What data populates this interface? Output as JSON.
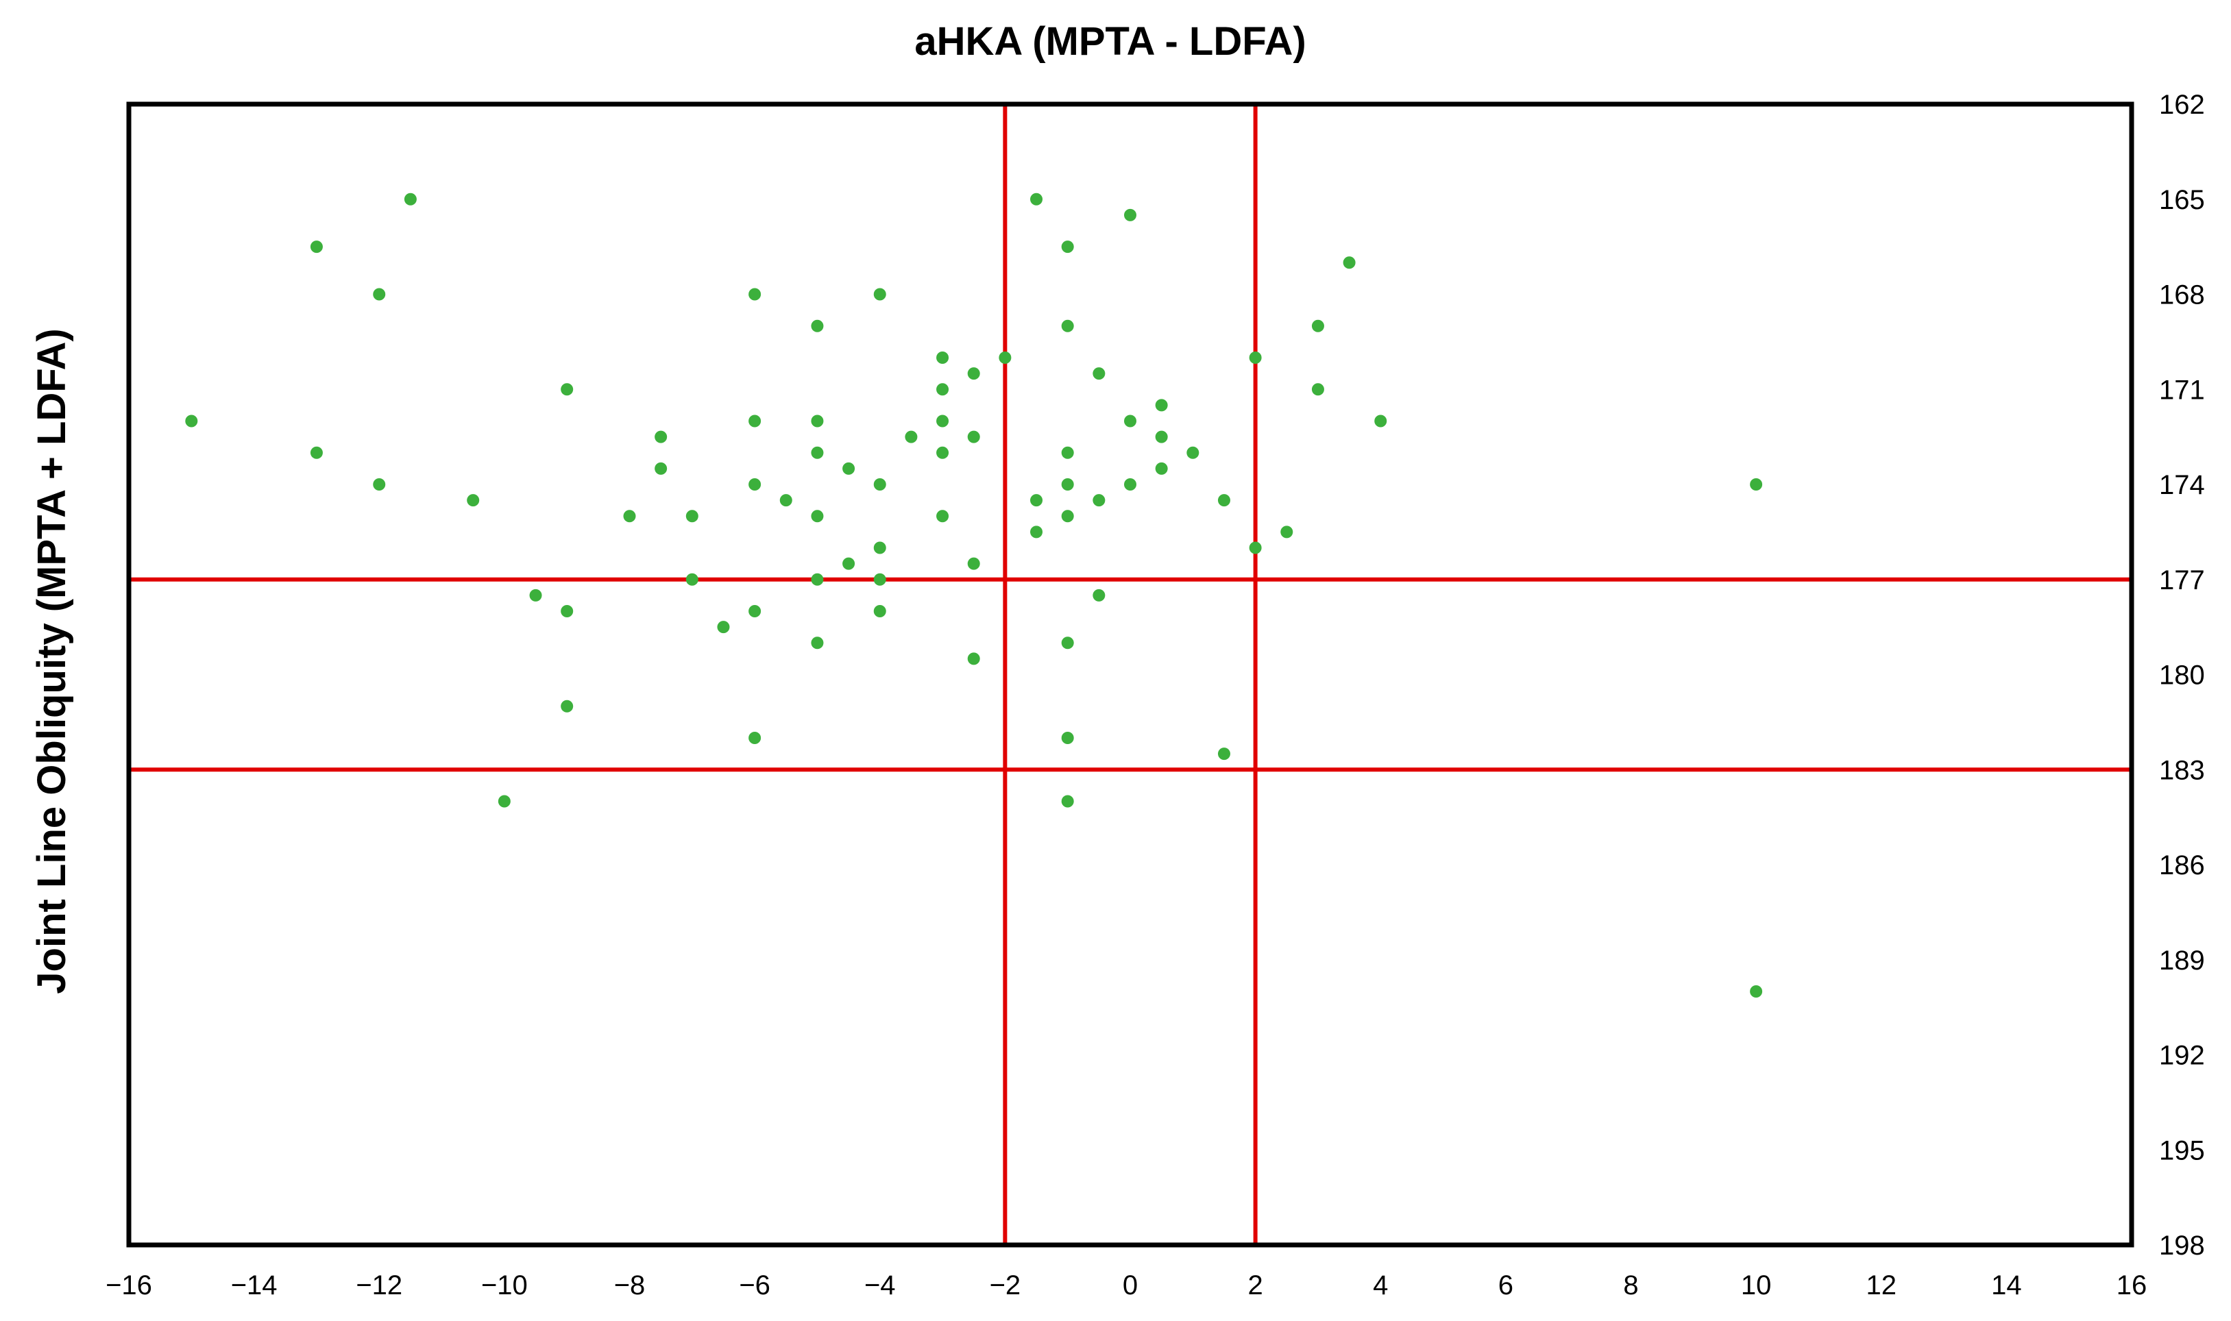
{
  "chart_data": {
    "type": "scatter",
    "title": "aHKA (MPTA - LDFA)",
    "xlabel": "",
    "ylabel": "Joint  Line Obliquity (MPTA + LDFA)",
    "xlim": [
      -16,
      16
    ],
    "ylim": [
      162,
      198
    ],
    "y_inverted": true,
    "y_axis_position": "right",
    "grid": false,
    "x_ticks": [
      -16,
      -14,
      -12,
      -10,
      -8,
      -6,
      -4,
      -2,
      0,
      2,
      4,
      6,
      8,
      10,
      12,
      14,
      16
    ],
    "x_tick_labels": [
      "−16",
      "−14",
      "−12",
      "−10",
      "−8",
      "−6",
      "−4",
      "−2",
      "0",
      "2",
      "4",
      "6",
      "8",
      "10",
      "12",
      "14",
      "16"
    ],
    "y_ticks": [
      162,
      165,
      168,
      171,
      174,
      177,
      180,
      183,
      186,
      189,
      192,
      195,
      198
    ],
    "y_tick_labels": [
      "162",
      "165",
      "168",
      "171",
      "174",
      "177",
      "180",
      "183",
      "186",
      "189",
      "192",
      "195",
      "198"
    ],
    "reference_lines": {
      "vertical": [
        -2,
        2
      ],
      "horizontal": [
        177,
        183
      ],
      "color": "#e00000"
    },
    "point_color": "#3cb03c",
    "points": [
      [
        -15,
        172
      ],
      [
        -13,
        166.5
      ],
      [
        -13,
        173
      ],
      [
        -12,
        168
      ],
      [
        -12,
        174
      ],
      [
        -11.5,
        165
      ],
      [
        -10.5,
        174.5
      ],
      [
        -10,
        184
      ],
      [
        -9.5,
        177.5
      ],
      [
        -9,
        171
      ],
      [
        -9,
        178
      ],
      [
        -9,
        181
      ],
      [
        -8,
        175
      ],
      [
        -7.5,
        172.5
      ],
      [
        -7.5,
        173.5
      ],
      [
        -7,
        175
      ],
      [
        -7,
        177
      ],
      [
        -6.5,
        178.5
      ],
      [
        -6,
        168
      ],
      [
        -6,
        172
      ],
      [
        -6,
        174
      ],
      [
        -6,
        178
      ],
      [
        -6,
        182
      ],
      [
        -5.5,
        174.5
      ],
      [
        -5,
        169
      ],
      [
        -5,
        172
      ],
      [
        -5,
        173
      ],
      [
        -5,
        175
      ],
      [
        -5,
        177
      ],
      [
        -5,
        179
      ],
      [
        -4.5,
        173.5
      ],
      [
        -4.5,
        176.5
      ],
      [
        -4,
        168
      ],
      [
        -4,
        174
      ],
      [
        -4,
        176
      ],
      [
        -4,
        177
      ],
      [
        -4,
        178
      ],
      [
        -3.5,
        172.5
      ],
      [
        -3,
        170
      ],
      [
        -3,
        171
      ],
      [
        -3,
        172
      ],
      [
        -3,
        173
      ],
      [
        -3,
        175
      ],
      [
        -2.5,
        170.5
      ],
      [
        -2.5,
        172.5
      ],
      [
        -2.5,
        176.5
      ],
      [
        -2.5,
        179.5
      ],
      [
        -2,
        170
      ],
      [
        -1.5,
        165
      ],
      [
        -1.5,
        174.5
      ],
      [
        -1.5,
        175.5
      ],
      [
        -1,
        166.5
      ],
      [
        -1,
        169
      ],
      [
        -1,
        173
      ],
      [
        -1,
        174
      ],
      [
        -1,
        175
      ],
      [
        -1,
        179
      ],
      [
        -1,
        182
      ],
      [
        -1,
        184
      ],
      [
        -0.5,
        170.5
      ],
      [
        -0.5,
        174.5
      ],
      [
        -0.5,
        177.5
      ],
      [
        0,
        165.5
      ],
      [
        0,
        172
      ],
      [
        0,
        174
      ],
      [
        0.5,
        171.5
      ],
      [
        0.5,
        172.5
      ],
      [
        0.5,
        173.5
      ],
      [
        1,
        173
      ],
      [
        1.5,
        174.5
      ],
      [
        1.5,
        182.5
      ],
      [
        2,
        170
      ],
      [
        2,
        176
      ],
      [
        2.5,
        175.5
      ],
      [
        3,
        169
      ],
      [
        3,
        171
      ],
      [
        3.5,
        167
      ],
      [
        4,
        172
      ],
      [
        10,
        174
      ],
      [
        10,
        190
      ]
    ]
  }
}
